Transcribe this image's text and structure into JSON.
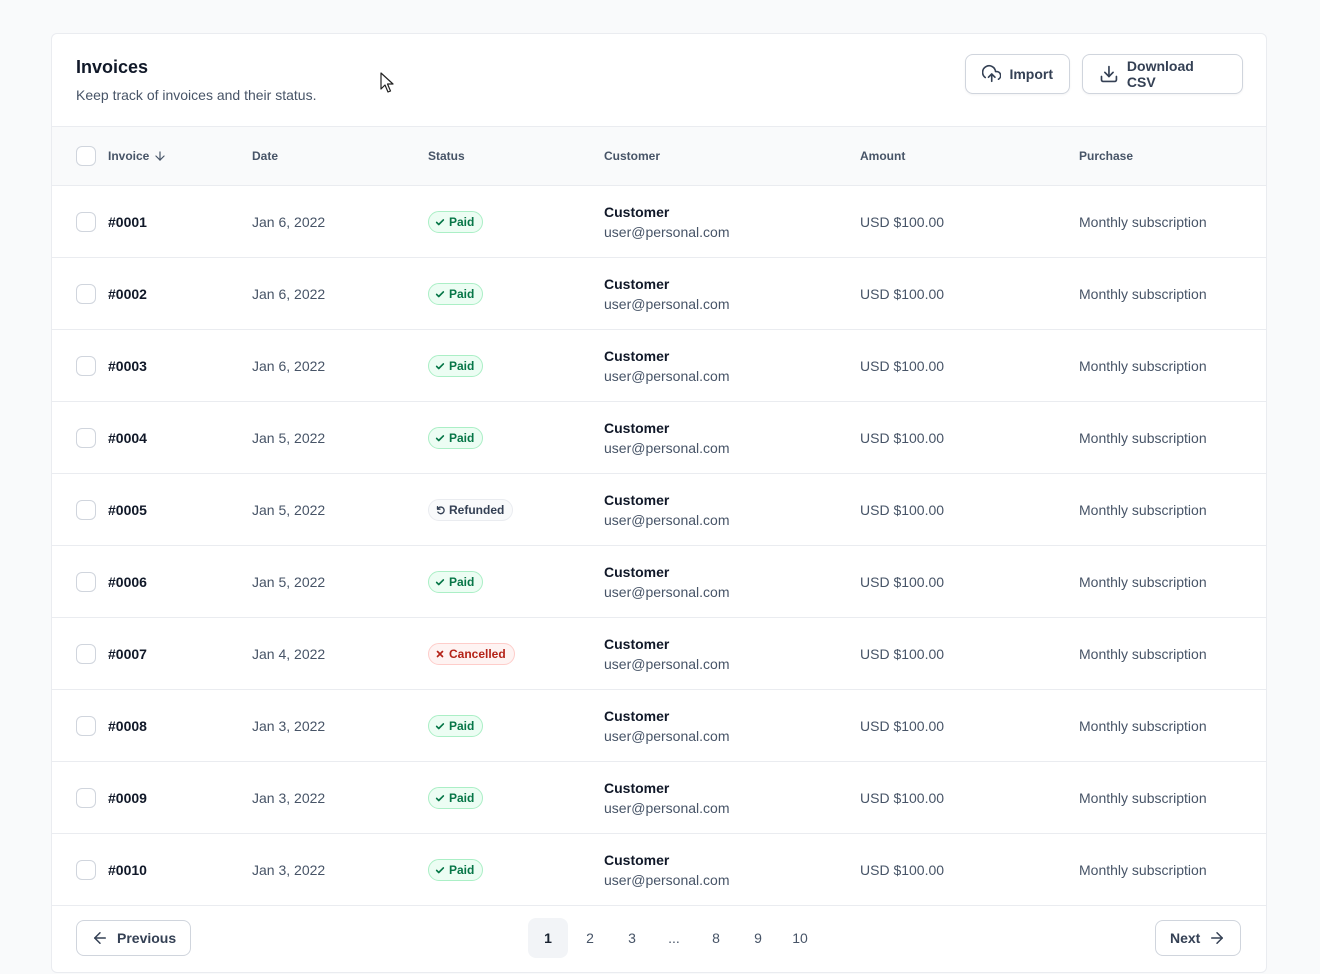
{
  "header": {
    "title": "Invoices",
    "subtitle": "Keep track of invoices and their status.",
    "import_label": "Import",
    "import_icon": "upload-cloud-icon",
    "download_label": "Download CSV",
    "download_icon": "download-icon"
  },
  "table": {
    "columns": {
      "invoice": "Invoice",
      "date": "Date",
      "status": "Status",
      "customer": "Customer",
      "amount": "Amount",
      "purchase": "Purchase"
    },
    "sort_icon": "arrow-down-icon",
    "rows": [
      {
        "invoice": "#0001",
        "date": "Jan 6, 2022",
        "status": "Paid",
        "status_type": "paid",
        "customer_name": "Customer",
        "customer_email": "user@personal.com",
        "amount": "USD $100.00",
        "purchase": "Monthly subscription"
      },
      {
        "invoice": "#0002",
        "date": "Jan 6, 2022",
        "status": "Paid",
        "status_type": "paid",
        "customer_name": "Customer",
        "customer_email": "user@personal.com",
        "amount": "USD $100.00",
        "purchase": "Monthly subscription"
      },
      {
        "invoice": "#0003",
        "date": "Jan 6, 2022",
        "status": "Paid",
        "status_type": "paid",
        "customer_name": "Customer",
        "customer_email": "user@personal.com",
        "amount": "USD $100.00",
        "purchase": "Monthly subscription"
      },
      {
        "invoice": "#0004",
        "date": "Jan 5, 2022",
        "status": "Paid",
        "status_type": "paid",
        "customer_name": "Customer",
        "customer_email": "user@personal.com",
        "amount": "USD $100.00",
        "purchase": "Monthly subscription"
      },
      {
        "invoice": "#0005",
        "date": "Jan 5, 2022",
        "status": "Refunded",
        "status_type": "refunded",
        "customer_name": "Customer",
        "customer_email": "user@personal.com",
        "amount": "USD $100.00",
        "purchase": "Monthly subscription"
      },
      {
        "invoice": "#0006",
        "date": "Jan 5, 2022",
        "status": "Paid",
        "status_type": "paid",
        "customer_name": "Customer",
        "customer_email": "user@personal.com",
        "amount": "USD $100.00",
        "purchase": "Monthly subscription"
      },
      {
        "invoice": "#0007",
        "date": "Jan 4, 2022",
        "status": "Cancelled",
        "status_type": "cancelled",
        "customer_name": "Customer",
        "customer_email": "user@personal.com",
        "amount": "USD $100.00",
        "purchase": "Monthly subscription"
      },
      {
        "invoice": "#0008",
        "date": "Jan 3, 2022",
        "status": "Paid",
        "status_type": "paid",
        "customer_name": "Customer",
        "customer_email": "user@personal.com",
        "amount": "USD $100.00",
        "purchase": "Monthly subscription"
      },
      {
        "invoice": "#0009",
        "date": "Jan 3, 2022",
        "status": "Paid",
        "status_type": "paid",
        "customer_name": "Customer",
        "customer_email": "user@personal.com",
        "amount": "USD $100.00",
        "purchase": "Monthly subscription"
      },
      {
        "invoice": "#0010",
        "date": "Jan 3, 2022",
        "status": "Paid",
        "status_type": "paid",
        "customer_name": "Customer",
        "customer_email": "user@personal.com",
        "amount": "USD $100.00",
        "purchase": "Monthly subscription"
      }
    ]
  },
  "pagination": {
    "previous_label": "Previous",
    "next_label": "Next",
    "pages": [
      "1",
      "2",
      "3",
      "...",
      "8",
      "9",
      "10"
    ],
    "current": "1"
  },
  "colors": {
    "paid": "#067647",
    "refunded": "#344054",
    "cancelled": "#b42318",
    "border": "#eaecf0"
  }
}
